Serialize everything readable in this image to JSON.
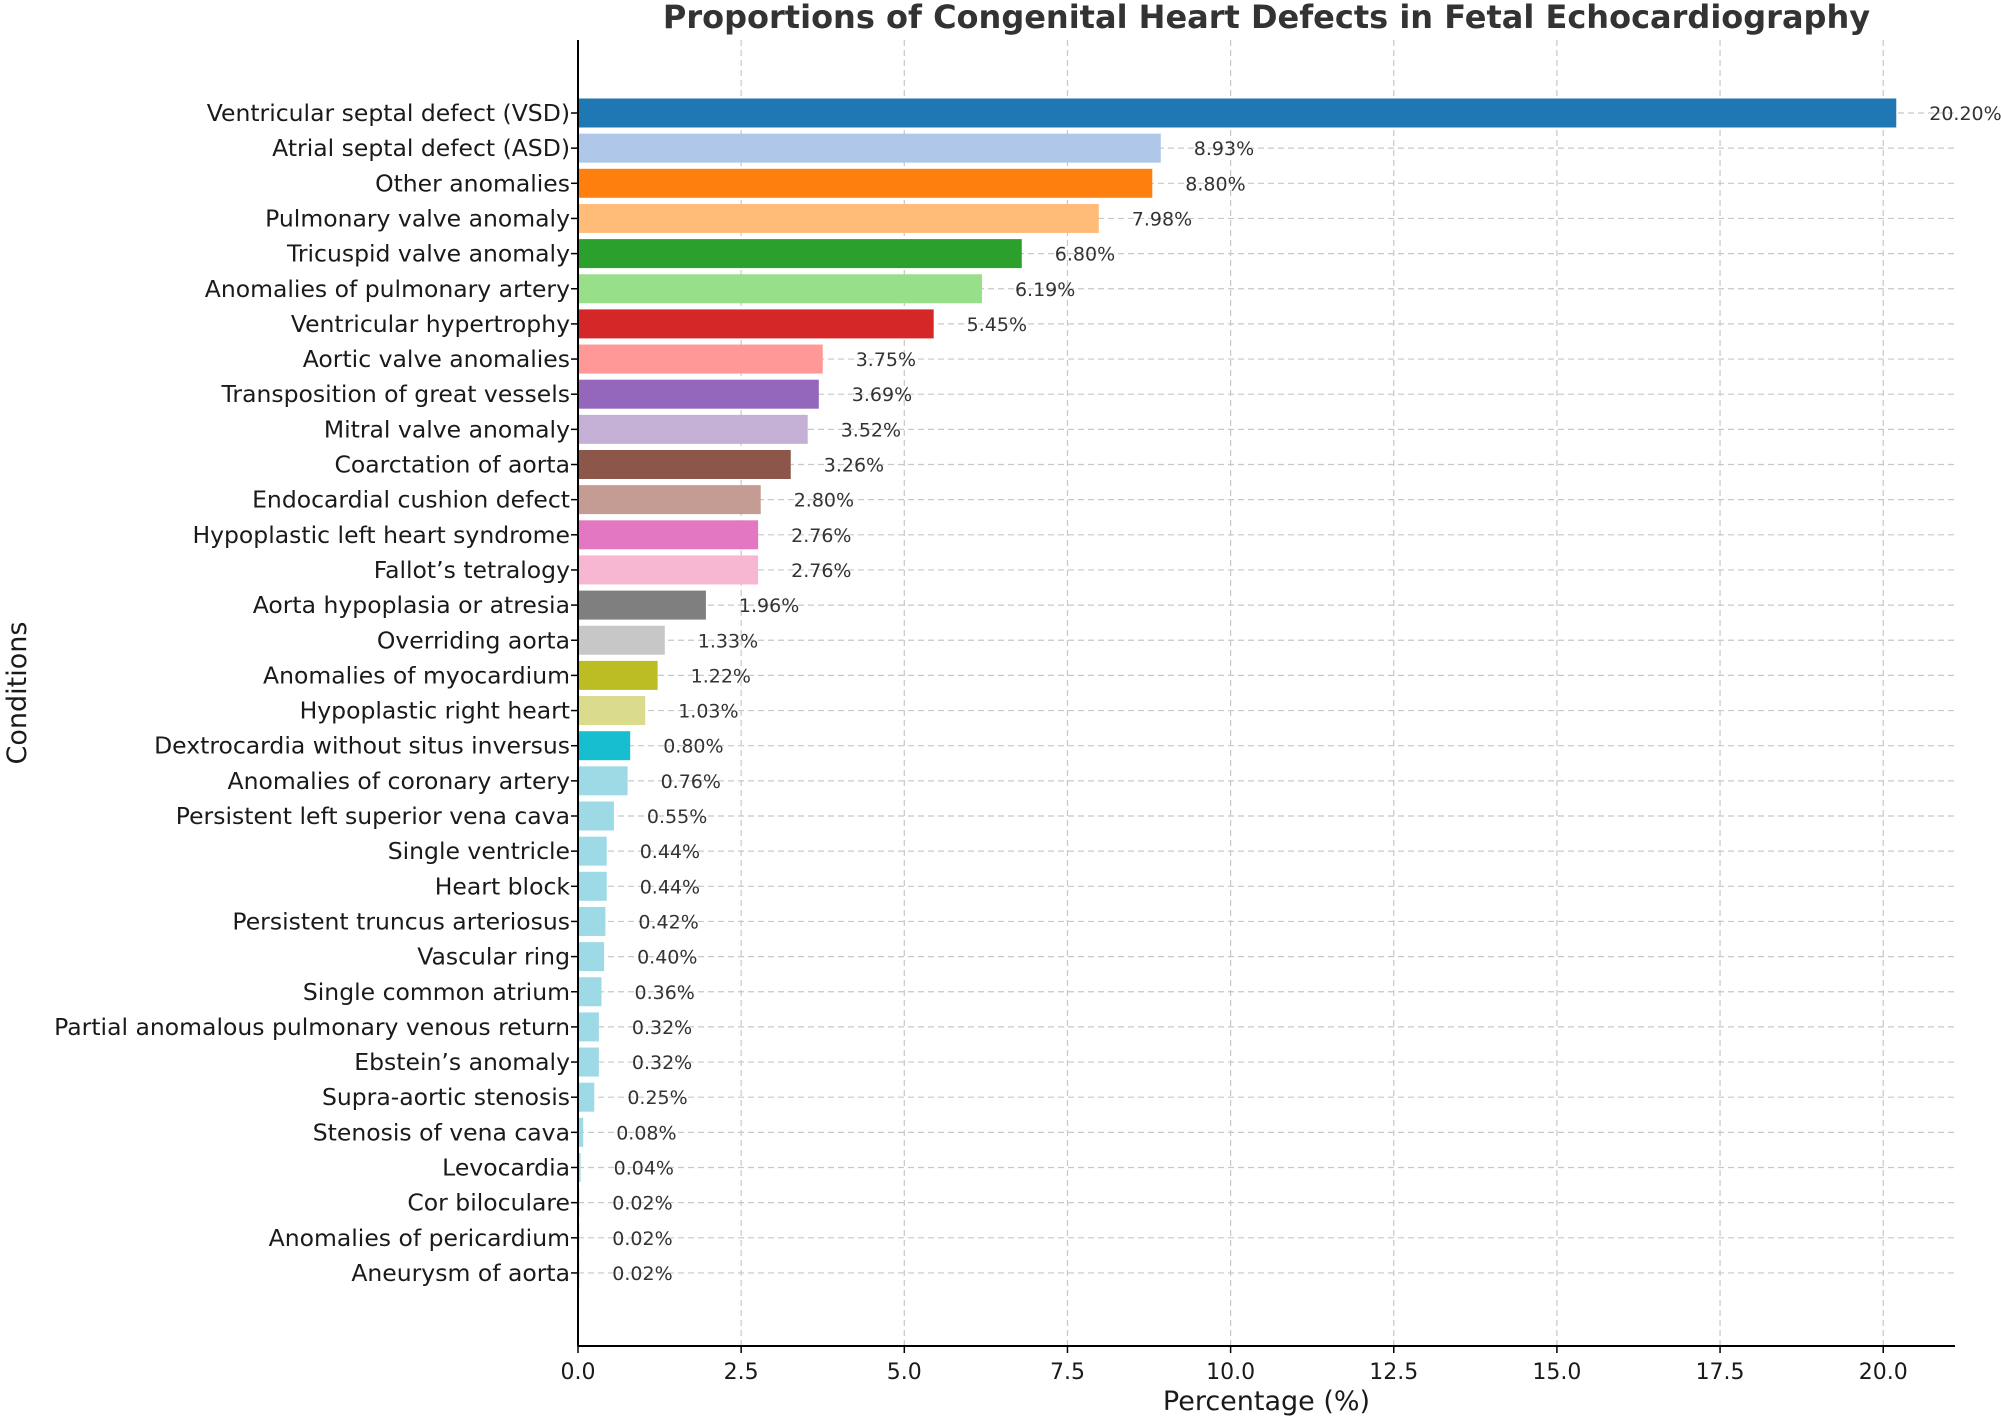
{
  "chart_data": {
    "type": "bar",
    "orientation": "horizontal",
    "title": "Proportions of Congenital Heart Defects in Fetal Echocardiography",
    "xlabel": "Percentage (%)",
    "ylabel": "Conditions",
    "xlim": [
      0,
      21.1
    ],
    "xticks": [
      0,
      2.5,
      5,
      7.5,
      10,
      12.5,
      15,
      17.5,
      20
    ],
    "xtick_labels": [
      "0.0",
      "2.5",
      "5.0",
      "7.5",
      "10.0",
      "12.5",
      "15.0",
      "17.5",
      "20.0"
    ],
    "grid": true,
    "categories": [
      "Ventricular septal defect (VSD)",
      "Atrial septal defect (ASD)",
      "Other anomalies",
      "Pulmonary valve anomaly",
      "Tricuspid valve anomaly",
      "Anomalies of pulmonary artery",
      "Ventricular hypertrophy",
      "Aortic valve anomalies",
      "Transposition of great vessels",
      "Mitral valve anomaly",
      "Coarctation of aorta",
      "Endocardial cushion defect",
      "Hypoplastic left heart syndrome",
      "Fallot’s tetralogy",
      "Aorta hypoplasia or atresia",
      "Overriding aorta",
      "Anomalies of myocardium",
      "Hypoplastic right heart",
      "Dextrocardia without situs inversus",
      "Anomalies of coronary artery",
      "Persistent left superior vena cava",
      "Single ventricle",
      "Heart block",
      "Persistent truncus arteriosus",
      "Vascular ring",
      "Single common atrium",
      "Partial anomalous pulmonary venous return",
      "Ebstein’s anomaly",
      "Supra-aortic stenosis",
      "Stenosis of vena cava",
      "Levocardia",
      "Cor biloculare",
      "Anomalies of pericardium",
      "Aneurysm of aorta"
    ],
    "values": [
      20.2,
      8.93,
      8.8,
      7.98,
      6.8,
      6.19,
      5.45,
      3.75,
      3.69,
      3.52,
      3.26,
      2.8,
      2.76,
      2.76,
      1.96,
      1.33,
      1.22,
      1.03,
      0.8,
      0.76,
      0.55,
      0.44,
      0.44,
      0.42,
      0.4,
      0.36,
      0.32,
      0.32,
      0.25,
      0.08,
      0.04,
      0.02,
      0.02,
      0.02
    ],
    "value_labels": [
      "20.20%",
      "8.93%",
      "8.80%",
      "7.98%",
      "6.80%",
      "6.19%",
      "5.45%",
      "3.75%",
      "3.69%",
      "3.52%",
      "3.26%",
      "2.80%",
      "2.76%",
      "2.76%",
      "1.96%",
      "1.33%",
      "1.22%",
      "1.03%",
      "0.80%",
      "0.76%",
      "0.55%",
      "0.44%",
      "0.44%",
      "0.42%",
      "0.40%",
      "0.36%",
      "0.32%",
      "0.32%",
      "0.25%",
      "0.08%",
      "0.04%",
      "0.02%",
      "0.02%",
      "0.02%"
    ],
    "colors": [
      "#1f77b4",
      "#aec7e8",
      "#ff7f0e",
      "#ffbb78",
      "#2ca02c",
      "#98df8a",
      "#d62728",
      "#ff9896",
      "#9467bd",
      "#c5b0d5",
      "#8c564b",
      "#c49c94",
      "#e377c2",
      "#f7b6d2",
      "#7f7f7f",
      "#c7c7c7",
      "#bcbd22",
      "#dbdb8d",
      "#17becf",
      "#9edae5",
      "#9edae5",
      "#9edae5",
      "#9edae5",
      "#9edae5",
      "#9edae5",
      "#9edae5",
      "#9edae5",
      "#9edae5",
      "#9edae5",
      "#9edae5",
      "#9edae5",
      "#9edae5",
      "#9edae5",
      "#9edae5"
    ]
  }
}
